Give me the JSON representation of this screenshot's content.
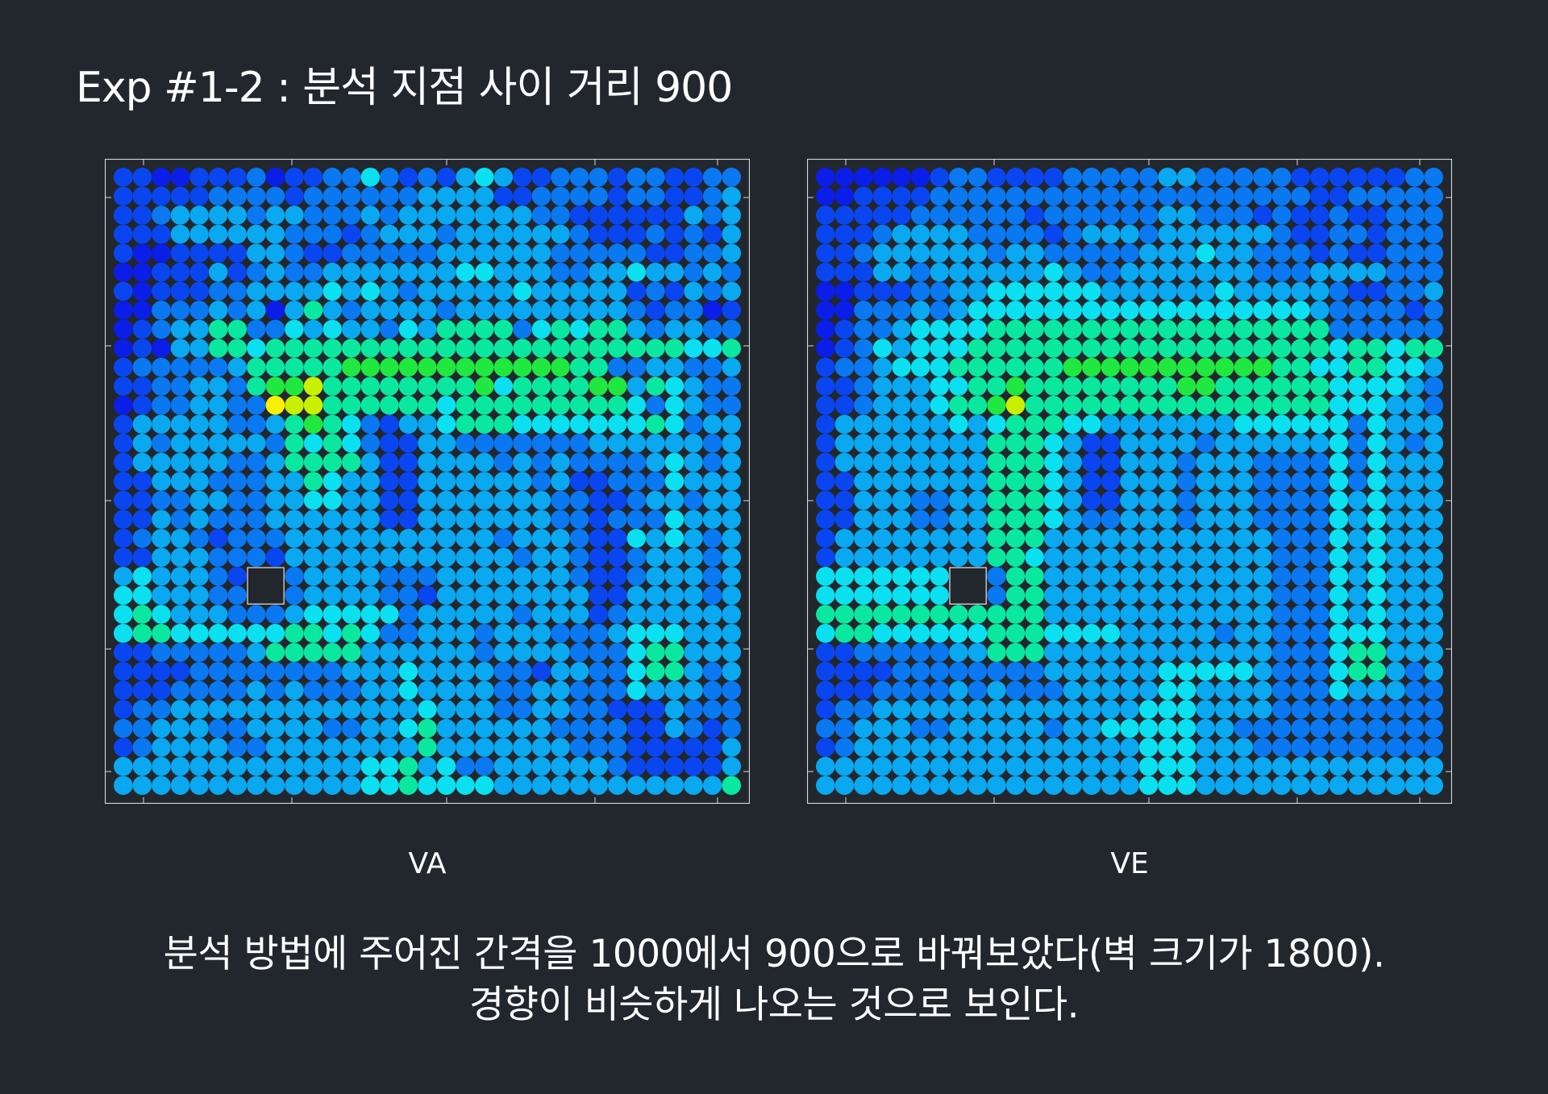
{
  "slide": {
    "title": "Exp #1-2 : 분석 지점 사이 거리 900",
    "caption_line1": "분석 방법에 주어진 간격을 1000에서 900으로 바꿔보았다(벽 크기가 1800).",
    "caption_line2": "경향이 비슷하게 나오는 것으로 보인다."
  },
  "colors": {
    "background": "#22272e",
    "frame": "#d8d8d8",
    "obstacle_fill": "#22272e",
    "obstacle_stroke": "#e6e6e6"
  },
  "chart_data": [
    {
      "type": "heatmap",
      "name": "VA",
      "xlabel": "VA",
      "colormap": "jet",
      "grid_size": [
        33,
        33
      ],
      "obstacle_cells": [
        [
          7,
          21
        ],
        [
          8,
          21
        ],
        [
          7,
          22
        ],
        [
          8,
          22
        ]
      ],
      "rows": [
        "221122231223353232454223332332233",
        "222223333233333344442233332332234",
        "223444434433343444444433222222434",
        "222444444333234443444444322232324",
        "211222244322333334444443333322334",
        "112224234334444444554443344544343",
        "212223344445454344444544444232434",
        "113334341464344443444444444323312",
        "123446633545443546666356566434433",
        "121446656666666666666666666666556",
        "233333466666777777777777663344334",
        "223344367786666666675666677465433",
        "123344339886666665666666666535433",
        "244444334676532445666555555565344",
        "243444443656532244333333344444434",
        "244444334666642244443434333345434",
        "224443334465442244444434223335444",
        "223344334455442244444443322344344",
        "224343334444442244444443323335444",
        "234432333444444444443444322545434",
        "224443332444444444444344322344434",
        "454443221344443334444444322344434",
        "554443332344443324444444422444434",
        "565444333455555344444344423444444",
        "566555555665653344434443334555444",
        "223333346666644444434444333566444",
        "222233333333444544443324433566434",
        "222333343433344544443344333544433",
        "233444444444444454443344332224333",
        "334443344443344564444443333224323",
        "234444334444444464444444333222224",
        "444444444444455645334444443222224",
        "444444444444455655554444444444446"
      ]
    },
    {
      "type": "heatmap",
      "name": "VE",
      "xlabel": "VE",
      "colormap": "jet",
      "grid_size": [
        33,
        33
      ],
      "obstacle_cells": [
        [
          7,
          21
        ],
        [
          8,
          21
        ],
        [
          7,
          22
        ],
        [
          8,
          22
        ]
      ],
      "rows": [
        "111111233222233333443333322222233",
        "112222333333333333333333332233333",
        "222223333332333333443332322322333",
        "222344443333234443444444322332333",
        "223444444344333334445443332322333",
        "222443444444543344444443334444333",
        "112223344555555444444544444322334",
        "113334345555555555555555554333323",
        "123345555666666666666666666333333",
        "123545556666666666666666666566566",
        "233455566666677777777777665566554",
        "223444556676666666677666666555543",
        "223444566786666666666666666555443",
        "244444454566655444444455555535444",
        "244444444666542244443444444535434",
        "244444444666542244434443333535444",
        "224444444666542244434443333535444",
        "224443344666542244434443333545444",
        "224443344666543344434443333545444",
        "244444444666444444444444333545444",
        "244444444665444444444444333545444",
        "555555553366444444444444333545444",
        "555555553366444444444444333545444",
        "666666666666444444444444333545444",
        "566555555666555544444344333555444",
        "223333344666444444444444333566444",
        "222233333333444444555554333566434",
        "222333343433344444554444333544433",
        "233444444444444445554444333333333",
        "334443344444344555554433333333333",
        "234444444444444445554443333333333",
        "444444444444444445554444444444444",
        "444444444444444445554444444444444"
      ]
    }
  ]
}
